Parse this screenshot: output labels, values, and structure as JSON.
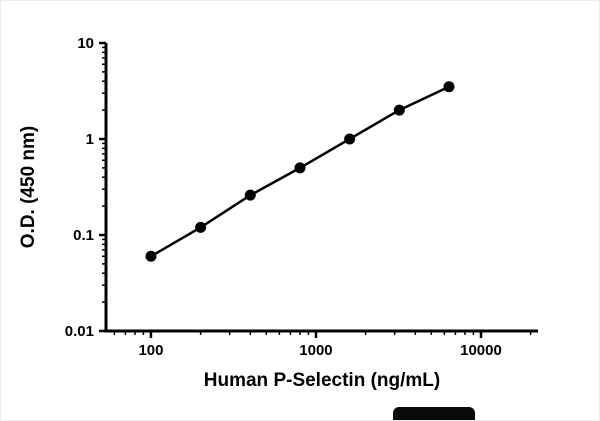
{
  "chart_data": {
    "type": "line",
    "x": [
      100,
      200,
      400,
      800,
      1600,
      3200,
      6400
    ],
    "y": [
      0.06,
      0.12,
      0.26,
      0.5,
      1.0,
      2.0,
      3.5
    ],
    "title": "",
    "xlabel": "Human P-Selectin (ng/mL)",
    "ylabel": "O.D. (450 nm)",
    "xscale": "log",
    "yscale": "log",
    "xlim": [
      53.4,
      22160
    ],
    "ylim": [
      0.01,
      10
    ],
    "x_major_ticks": [
      100,
      1000,
      10000
    ],
    "x_tick_labels": [
      "100",
      "1000",
      "10000"
    ],
    "x_minor_ticks": [
      60,
      70,
      80,
      90,
      200,
      300,
      400,
      500,
      600,
      700,
      800,
      900,
      2000,
      3000,
      4000,
      5000,
      6000,
      7000,
      8000,
      9000,
      20000
    ],
    "y_major_ticks": [
      0.01,
      0.1,
      1,
      10
    ],
    "y_tick_labels": [
      "0.01",
      "0.1",
      "1",
      "10"
    ],
    "y_minor_ticks": [
      0.02,
      0.03,
      0.04,
      0.05,
      0.06,
      0.07,
      0.08,
      0.09,
      0.2,
      0.3,
      0.4,
      0.5,
      0.6,
      0.7,
      0.8,
      0.9,
      2,
      3,
      4,
      5,
      6,
      7,
      8,
      9
    ],
    "grid": false,
    "legend": null,
    "marker": "circle",
    "line_color": "#000000",
    "marker_color": "#000000",
    "axis_color": "#000000"
  }
}
